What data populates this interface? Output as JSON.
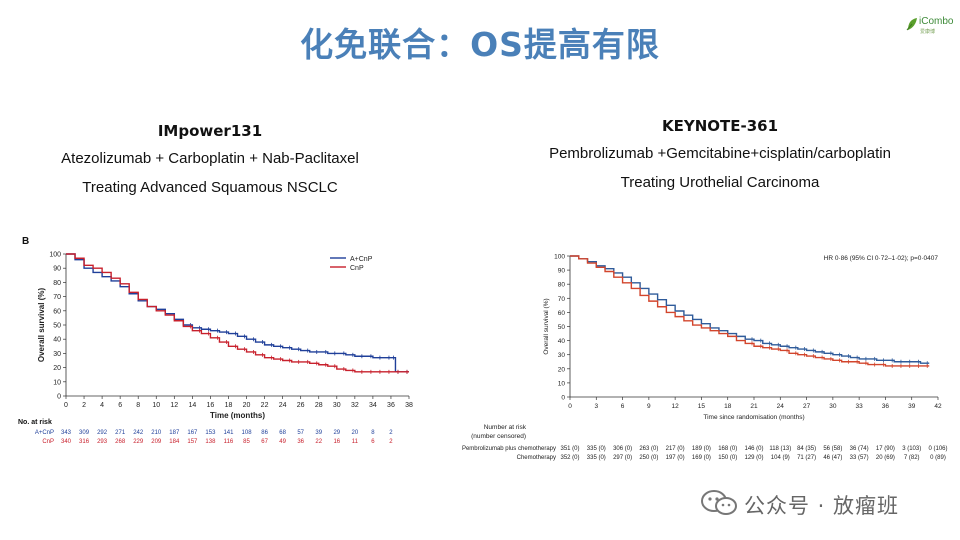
{
  "title": "化免联合：OS提高有限",
  "logo": {
    "brand": "iCombo",
    "sub": "爱康博"
  },
  "left": {
    "heading": "IMpower131",
    "line1": "Atezolizumab + Carboplatin + Nab-Paclitaxel",
    "line2": "Treating Advanced Squamous NSCLC"
  },
  "right": {
    "heading": "KEYNOTE-361",
    "line1": "Pembrolizumab +Gemcitabine+cisplatin/carboplatin",
    "line2": "Treating Urothelial Carcinoma"
  },
  "watermark": "公众号 · 放瘤班",
  "chart_data": [
    {
      "type": "line",
      "panel_label": "B",
      "xlabel": "Time (months)",
      "ylabel": "Overall survival (%)",
      "xlim": [
        0,
        38
      ],
      "ylim": [
        0,
        100
      ],
      "xticks": [
        0,
        2,
        4,
        6,
        8,
        10,
        12,
        14,
        16,
        18,
        20,
        22,
        24,
        26,
        28,
        30,
        32,
        34,
        36,
        38
      ],
      "yticks": [
        0,
        10,
        20,
        30,
        40,
        50,
        60,
        70,
        80,
        90,
        100
      ],
      "legend_position": "top-right",
      "series": [
        {
          "name": "A+CnP",
          "color": "#1f3f99",
          "x": [
            0,
            1,
            2,
            3,
            4,
            5,
            6,
            7,
            8,
            9,
            10,
            11,
            12,
            13,
            14,
            15,
            16,
            17,
            18,
            19,
            20,
            21,
            22,
            23,
            24,
            25,
            26,
            27,
            28,
            29,
            30,
            31,
            32,
            33,
            34,
            35,
            36,
            36.5,
            37,
            38
          ],
          "y": [
            100,
            96,
            90,
            87,
            84,
            81,
            77,
            72,
            67,
            63,
            61,
            58,
            54,
            50,
            48,
            47,
            46,
            45,
            44,
            42,
            40,
            38,
            36,
            35,
            34,
            33,
            32,
            31,
            31,
            30,
            30,
            29,
            28,
            28,
            27,
            27,
            27,
            17,
            17,
            17
          ]
        },
        {
          "name": "CnP",
          "color": "#c8202c",
          "x": [
            0,
            1,
            2,
            3,
            4,
            5,
            6,
            7,
            8,
            9,
            10,
            11,
            12,
            13,
            14,
            15,
            16,
            17,
            18,
            19,
            20,
            21,
            22,
            23,
            24,
            25,
            26,
            27,
            28,
            29,
            30,
            31,
            32,
            33,
            34,
            35,
            36,
            37,
            38
          ],
          "y": [
            100,
            97,
            92,
            90,
            87,
            83,
            79,
            73,
            68,
            63,
            60,
            57,
            53,
            49,
            46,
            44,
            41,
            38,
            35,
            33,
            31,
            29,
            27,
            26,
            25,
            24,
            24,
            23,
            22,
            21,
            19,
            18,
            17,
            17,
            17,
            17,
            17,
            17,
            17
          ]
        }
      ],
      "risk_table": {
        "title": "No. at risk",
        "rows": [
          {
            "label": "A+CnP",
            "color": "#1f3f99",
            "values": [
              "343",
              "309",
              "292",
              "271",
              "242",
              "210",
              "187",
              "167",
              "153",
              "141",
              "108",
              "86",
              "68",
              "57",
              "39",
              "29",
              "20",
              "8",
              "2"
            ]
          },
          {
            "label": "CnP",
            "color": "#c8202c",
            "values": [
              "340",
              "316",
              "293",
              "268",
              "229",
              "209",
              "184",
              "157",
              "138",
              "116",
              "85",
              "67",
              "49",
              "36",
              "22",
              "16",
              "11",
              "6",
              "2"
            ]
          }
        ]
      }
    },
    {
      "type": "line",
      "xlabel": "Time since randomisation (months)",
      "ylabel": "Overall survival (%)",
      "xlim": [
        0,
        42
      ],
      "ylim": [
        0,
        100
      ],
      "xticks": [
        0,
        3,
        6,
        9,
        12,
        15,
        18,
        21,
        24,
        27,
        30,
        33,
        36,
        39,
        42
      ],
      "yticks": [
        0,
        10,
        20,
        30,
        40,
        50,
        60,
        70,
        80,
        90,
        100
      ],
      "annotation": "HR 0·86 (95% CI 0·72–1·02); p=0·0407",
      "series": [
        {
          "name": "Pembrolizumab plus chemotherapy",
          "color": "#2f5b9a",
          "x": [
            0,
            1,
            2,
            3,
            4,
            5,
            6,
            7,
            8,
            9,
            10,
            11,
            12,
            13,
            14,
            15,
            16,
            17,
            18,
            19,
            20,
            21,
            22,
            23,
            24,
            25,
            26,
            27,
            28,
            29,
            30,
            31,
            32,
            33,
            34,
            35,
            36,
            37,
            38,
            39,
            40,
            41
          ],
          "y": [
            100,
            98,
            96,
            93,
            91,
            88,
            85,
            81,
            77,
            73,
            69,
            65,
            61,
            58,
            55,
            52,
            49,
            47,
            45,
            43,
            41,
            40,
            38,
            37,
            36,
            35,
            34,
            33,
            32,
            31,
            30,
            29,
            28,
            27,
            27,
            26,
            26,
            25,
            25,
            25,
            24,
            24
          ]
        },
        {
          "name": "Chemotherapy",
          "color": "#d2452c",
          "x": [
            0,
            1,
            2,
            3,
            4,
            5,
            6,
            7,
            8,
            9,
            10,
            11,
            12,
            13,
            14,
            15,
            16,
            17,
            18,
            19,
            20,
            21,
            22,
            23,
            24,
            25,
            26,
            27,
            28,
            29,
            30,
            31,
            32,
            33,
            34,
            35,
            36,
            37,
            38,
            39,
            40,
            41
          ],
          "y": [
            100,
            98,
            95,
            92,
            89,
            85,
            81,
            77,
            72,
            68,
            64,
            60,
            57,
            54,
            51,
            49,
            47,
            45,
            43,
            40,
            38,
            36,
            35,
            34,
            33,
            31,
            30,
            29,
            28,
            27,
            26,
            25,
            25,
            24,
            23,
            23,
            22,
            22,
            22,
            22,
            22,
            22
          ]
        }
      ],
      "risk_table": {
        "title": "Number at risk",
        "subtitle": "(number censored)",
        "rows": [
          {
            "label": "Pembrolizumab plus chemotherapy",
            "values": [
              "351 (0)",
              "335 (0)",
              "306 (0)",
              "263 (0)",
              "217 (0)",
              "189 (0)",
              "168 (0)",
              "146 (0)",
              "118 (13)",
              "84 (35)",
              "56 (58)",
              "36 (74)",
              "17 (90)",
              "3 (103)",
              "0 (106)"
            ]
          },
          {
            "label": "Chemotherapy",
            "values": [
              "352 (0)",
              "335 (0)",
              "297 (0)",
              "250 (0)",
              "197 (0)",
              "169 (0)",
              "150 (0)",
              "129 (0)",
              "104 (9)",
              "71 (27)",
              "46 (47)",
              "33 (57)",
              "20 (69)",
              "7 (82)",
              "0 (89)"
            ]
          }
        ]
      }
    }
  ]
}
